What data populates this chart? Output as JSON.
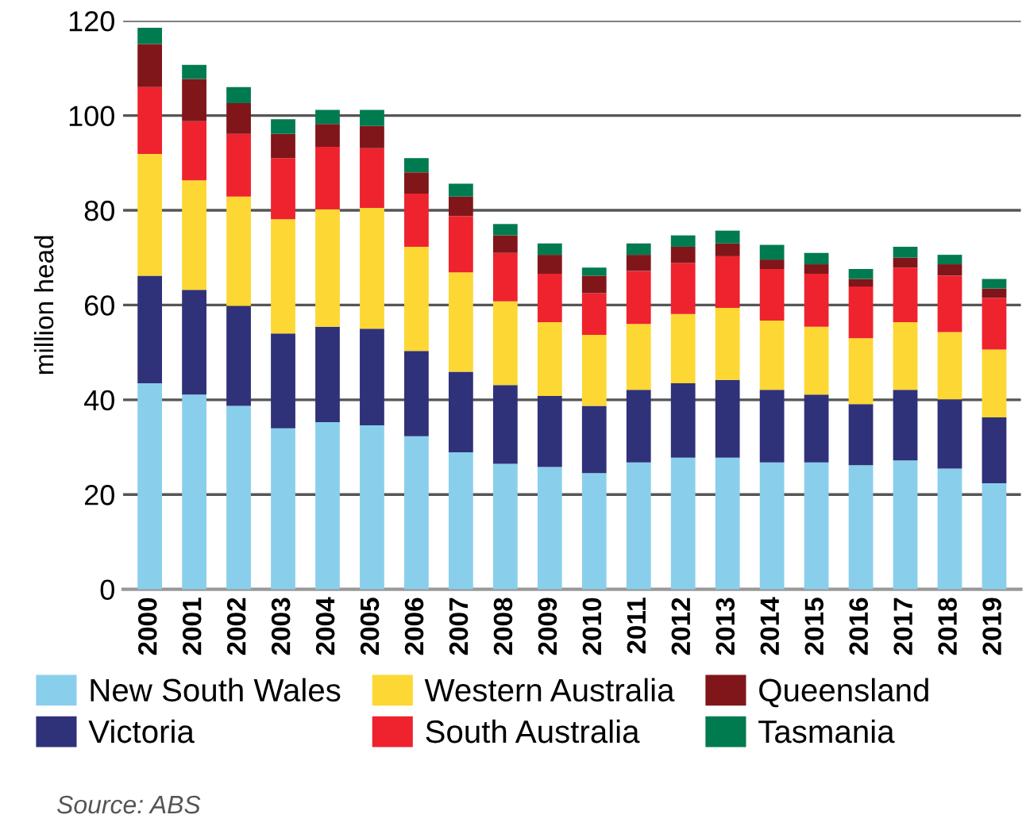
{
  "chart_data": {
    "type": "bar",
    "stacked": true,
    "ylabel": "million head",
    "categories": [
      "2000",
      "2001",
      "2002",
      "2003",
      "2004",
      "2005",
      "2006",
      "2007",
      "2008",
      "2009",
      "2010",
      "2011",
      "2012",
      "2013",
      "2014",
      "2015",
      "2016",
      "2017",
      "2018",
      "2019"
    ],
    "series": [
      {
        "name": "New South Wales",
        "color": "#89cfeb",
        "values": [
          43.5,
          41.1,
          38.7,
          34.0,
          35.3,
          34.6,
          32.3,
          28.9,
          26.5,
          25.8,
          24.5,
          26.8,
          27.8,
          27.8,
          26.8,
          26.8,
          26.2,
          27.2,
          25.5,
          22.4
        ]
      },
      {
        "name": "Victoria",
        "color": "#2f3179",
        "values": [
          22.7,
          22.1,
          21.1,
          20.0,
          20.1,
          20.4,
          18.0,
          17.0,
          16.6,
          15.0,
          14.2,
          15.3,
          15.7,
          16.4,
          15.3,
          14.3,
          12.9,
          14.9,
          14.6,
          13.9
        ]
      },
      {
        "name": "Western Australia",
        "color": "#fdd733",
        "values": [
          25.7,
          23.1,
          23.1,
          24.1,
          24.8,
          25.5,
          22.0,
          21.0,
          17.7,
          15.6,
          15.0,
          13.9,
          14.6,
          15.2,
          14.6,
          14.3,
          13.9,
          14.3,
          14.2,
          14.3
        ]
      },
      {
        "name": "South Australia",
        "color": "#ee232e",
        "values": [
          14.1,
          12.5,
          13.2,
          12.9,
          13.2,
          12.6,
          11.2,
          11.9,
          10.2,
          10.2,
          8.8,
          11.2,
          10.8,
          10.9,
          10.9,
          11.2,
          10.9,
          11.5,
          11.9,
          10.9
        ]
      },
      {
        "name": "Queensland",
        "color": "#80161a",
        "values": [
          9.1,
          8.9,
          6.5,
          5.1,
          4.8,
          4.7,
          4.5,
          4.1,
          3.7,
          4.0,
          3.7,
          3.4,
          3.4,
          2.7,
          2.0,
          2.0,
          1.6,
          2.1,
          2.4,
          2.0
        ]
      },
      {
        "name": "Tasmania",
        "color": "#007b4f",
        "values": [
          3.4,
          3.0,
          3.4,
          3.1,
          3.0,
          3.4,
          3.0,
          2.7,
          2.4,
          2.4,
          1.7,
          2.4,
          2.4,
          2.7,
          3.1,
          2.4,
          2.1,
          2.3,
          2.0,
          2.0
        ]
      }
    ],
    "ylim": [
      0,
      120
    ],
    "yticks": [
      0,
      20,
      40,
      60,
      80,
      100,
      120
    ],
    "grid": "y",
    "legend": "bottom",
    "annotations": [
      "Source: ABS"
    ]
  }
}
